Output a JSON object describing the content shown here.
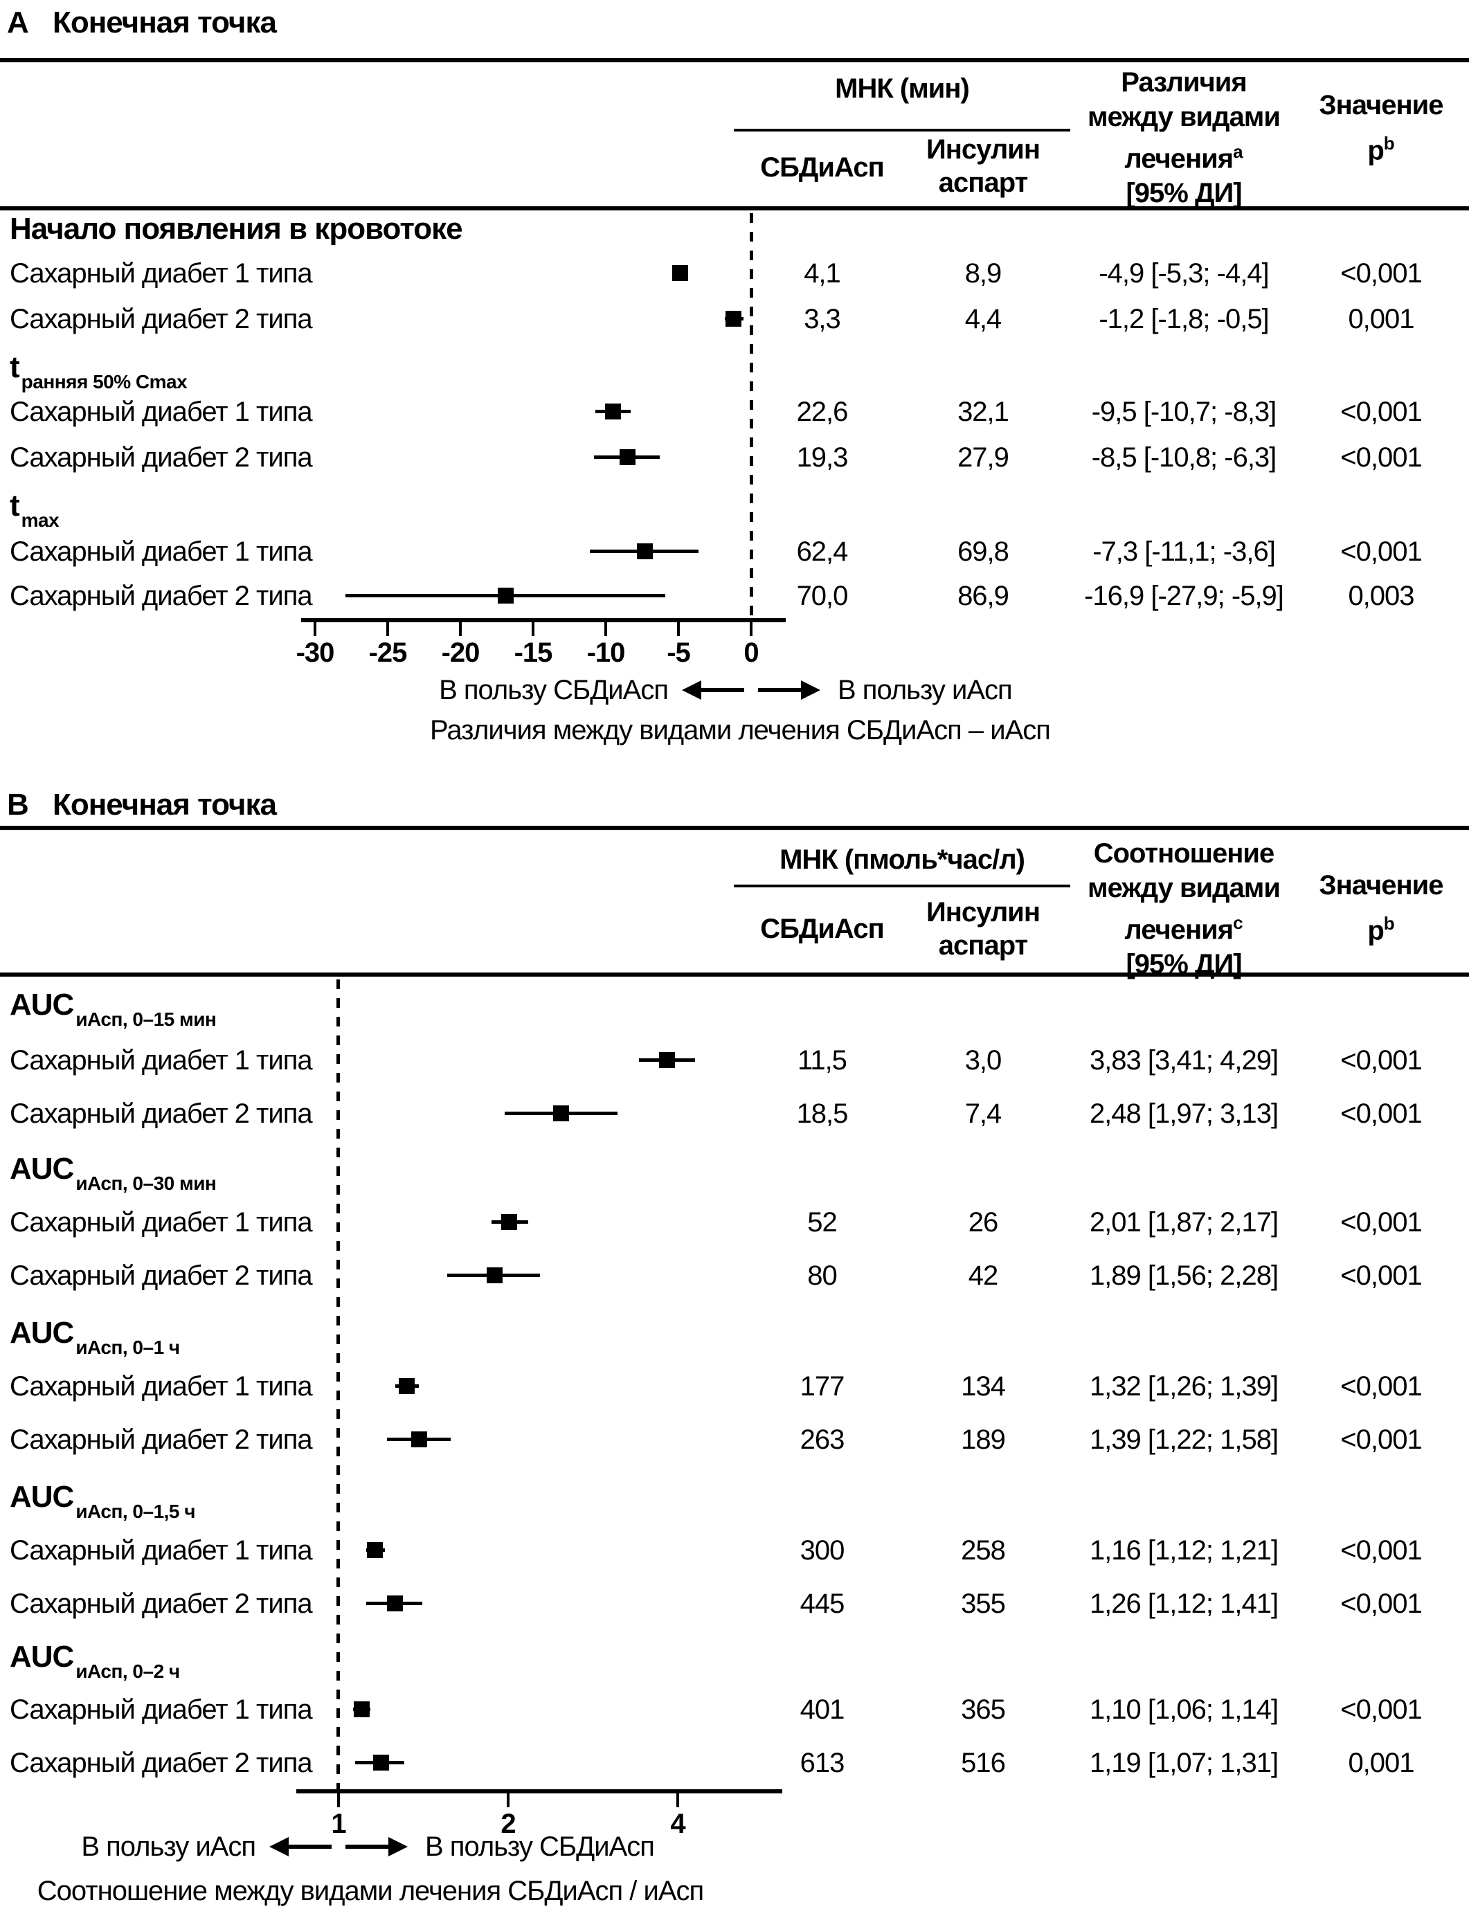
{
  "chart_data": [
    {
      "type": "forest",
      "panel_label": "A",
      "panel_title": "Конечная точка",
      "unit_header": "МНК (мин)",
      "arm_headers": [
        "СБДиАсп",
        "Инсулин аспарт"
      ],
      "effect_header": {
        "lines": [
          "Различия",
          "между видами",
          "лечения"
        ],
        "note": "a",
        "ci_line": "[95% ДИ]"
      },
      "p_header": {
        "label": "Значение",
        "symbol": "p",
        "note": "b"
      },
      "axis": {
        "scale": "linear",
        "tick_values": [
          -30,
          -25,
          -20,
          -15,
          -10,
          -5,
          0
        ],
        "tick_labels": [
          "-30",
          "-25",
          "-20",
          "-15",
          "-10",
          "-5",
          "0"
        ],
        "reference": 0,
        "xlim": [
          -31,
          2.3
        ]
      },
      "favors_left": "В пользу СБДиАсп",
      "favors_right": "В пользу иАсп",
      "xlabel": "Различия между видами лечения СБДиАсп – иАсп",
      "groups": [
        {
          "heading": "Начало появления в кровотоке",
          "heading_sub": "",
          "rows": [
            {
              "label": "Сахарный диабет 1 типа",
              "sbdiasp": "4,1",
              "aspart": "8,9",
              "estimate": -4.9,
              "ci_low": -5.3,
              "ci_high": -4.4,
              "effect_text": "-4,9 [-5,3; -4,4]",
              "p_text": "<0,001"
            },
            {
              "label": "Сахарный диабет 2 типа",
              "sbdiasp": "3,3",
              "aspart": "4,4",
              "estimate": -1.2,
              "ci_low": -1.8,
              "ci_high": -0.5,
              "effect_text": "-1,2 [-1,8; -0,5]",
              "p_text": "0,001"
            }
          ]
        },
        {
          "heading": "t",
          "heading_sub": "ранняя 50% Cmax",
          "rows": [
            {
              "label": "Сахарный диабет 1 типа",
              "sbdiasp": "22,6",
              "aspart": "32,1",
              "estimate": -9.5,
              "ci_low": -10.7,
              "ci_high": -8.3,
              "effect_text": "-9,5 [-10,7; -8,3]",
              "p_text": "<0,001"
            },
            {
              "label": "Сахарный диабет 2 типа",
              "sbdiasp": "19,3",
              "aspart": "27,9",
              "estimate": -8.5,
              "ci_low": -10.8,
              "ci_high": -6.3,
              "effect_text": "-8,5 [-10,8; -6,3]",
              "p_text": "<0,001"
            }
          ]
        },
        {
          "heading": "t",
          "heading_sub": "max",
          "rows": [
            {
              "label": "Сахарный диабет 1 типа",
              "sbdiasp": "62,4",
              "aspart": "69,8",
              "estimate": -7.3,
              "ci_low": -11.1,
              "ci_high": -3.6,
              "effect_text": "-7,3 [-11,1; -3,6]",
              "p_text": "<0,001"
            },
            {
              "label": "Сахарный диабет 2 типа",
              "sbdiasp": "70,0",
              "aspart": "86,9",
              "estimate": -16.9,
              "ci_low": -27.9,
              "ci_high": -5.9,
              "effect_text": "-16,9 [-27,9; -5,9]",
              "p_text": "0,003"
            }
          ]
        }
      ]
    },
    {
      "type": "forest",
      "panel_label": "B",
      "panel_title": "Конечная точка",
      "unit_header": "МНК (пмоль*час/л)",
      "arm_headers": [
        "СБДиАсп",
        "Инсулин аспарт"
      ],
      "effect_header": {
        "lines": [
          "Соотношение",
          "между видами",
          "лечения"
        ],
        "note": "c",
        "ci_line": "[95% ДИ]"
      },
      "p_header": {
        "label": "Значение",
        "symbol": "p",
        "note": "b"
      },
      "axis": {
        "scale": "log",
        "tick_values": [
          1,
          2,
          4
        ],
        "tick_labels": [
          "1",
          "2",
          "4"
        ],
        "reference": 1,
        "xlim": [
          0.85,
          6.1
        ]
      },
      "favors_left": "В пользу иАсп",
      "favors_right": "В пользу СБДиАсп",
      "xlabel": "Соотношение между видами лечения СБДиАсп / иАсп",
      "groups": [
        {
          "heading": "AUC",
          "heading_sub": "иАсп, 0–15 мин",
          "rows": [
            {
              "label": "Сахарный диабет 1 типа",
              "sbdiasp": "11,5",
              "aspart": "3,0",
              "estimate": 3.83,
              "ci_low": 3.41,
              "ci_high": 4.29,
              "effect_text": "3,83 [3,41; 4,29]",
              "p_text": "<0,001"
            },
            {
              "label": "Сахарный диабет 2 типа",
              "sbdiasp": "18,5",
              "aspart": "7,4",
              "estimate": 2.48,
              "ci_low": 1.97,
              "ci_high": 3.13,
              "effect_text": "2,48 [1,97; 3,13]",
              "p_text": "<0,001"
            }
          ]
        },
        {
          "heading": "AUC",
          "heading_sub": "иАсп, 0–30 мин",
          "rows": [
            {
              "label": "Сахарный диабет 1 типа",
              "sbdiasp": "52",
              "aspart": "26",
              "estimate": 2.01,
              "ci_low": 1.87,
              "ci_high": 2.17,
              "effect_text": "2,01 [1,87; 2,17]",
              "p_text": "<0,001"
            },
            {
              "label": "Сахарный диабет 2 типа",
              "sbdiasp": "80",
              "aspart": "42",
              "estimate": 1.89,
              "ci_low": 1.56,
              "ci_high": 2.28,
              "effect_text": "1,89 [1,56; 2,28]",
              "p_text": "<0,001"
            }
          ]
        },
        {
          "heading": "AUC",
          "heading_sub": "иАсп, 0–1 ч",
          "rows": [
            {
              "label": "Сахарный диабет 1 типа",
              "sbdiasp": "177",
              "aspart": "134",
              "estimate": 1.32,
              "ci_low": 1.26,
              "ci_high": 1.39,
              "effect_text": "1,32 [1,26; 1,39]",
              "p_text": "<0,001"
            },
            {
              "label": "Сахарный диабет 2 типа",
              "sbdiasp": "263",
              "aspart": "189",
              "estimate": 1.39,
              "ci_low": 1.22,
              "ci_high": 1.58,
              "effect_text": "1,39 [1,22; 1,58]",
              "p_text": "<0,001"
            }
          ]
        },
        {
          "heading": "AUC",
          "heading_sub": "иАсп, 0–1,5 ч",
          "rows": [
            {
              "label": "Сахарный диабет 1 типа",
              "sbdiasp": "300",
              "aspart": "258",
              "estimate": 1.16,
              "ci_low": 1.12,
              "ci_high": 1.21,
              "effect_text": "1,16 [1,12; 1,21]",
              "p_text": "<0,001"
            },
            {
              "label": "Сахарный диабет 2 типа",
              "sbdiasp": "445",
              "aspart": "355",
              "estimate": 1.26,
              "ci_low": 1.12,
              "ci_high": 1.41,
              "effect_text": "1,26 [1,12; 1,41]",
              "p_text": "<0,001"
            }
          ]
        },
        {
          "heading": "AUC",
          "heading_sub": "иАсп, 0–2 ч",
          "rows": [
            {
              "label": "Сахарный диабет 1 типа",
              "sbdiasp": "401",
              "aspart": "365",
              "estimate": 1.1,
              "ci_low": 1.06,
              "ci_high": 1.14,
              "effect_text": "1,10 [1,06; 1,14]",
              "p_text": "<0,001"
            },
            {
              "label": "Сахарный диабет 2 типа",
              "sbdiasp": "613",
              "aspart": "516",
              "estimate": 1.19,
              "ci_low": 1.07,
              "ci_high": 1.31,
              "effect_text": "1,19 [1,07; 1,31]",
              "p_text": "0,001"
            }
          ]
        }
      ]
    }
  ]
}
